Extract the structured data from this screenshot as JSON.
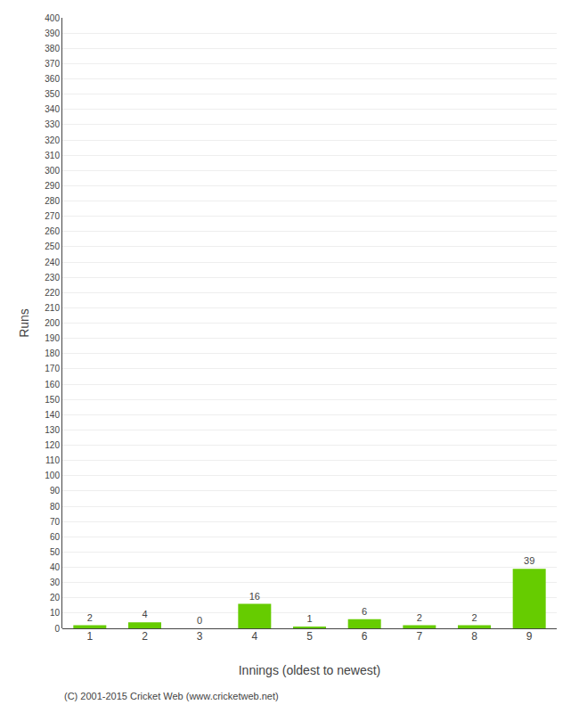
{
  "chart_data": {
    "type": "bar",
    "categories": [
      "1",
      "2",
      "3",
      "4",
      "5",
      "6",
      "7",
      "8",
      "9"
    ],
    "values": [
      2,
      4,
      0,
      16,
      1,
      6,
      2,
      2,
      39
    ],
    "color": "#66cc00",
    "xlabel": "Innings (oldest to newest)",
    "ylabel": "Runs",
    "ylim": [
      0,
      400
    ],
    "yticks": [
      0,
      10,
      20,
      30,
      40,
      50,
      60,
      70,
      80,
      90,
      100,
      110,
      120,
      130,
      140,
      150,
      160,
      170,
      180,
      190,
      200,
      210,
      220,
      230,
      240,
      250,
      260,
      270,
      280,
      290,
      300,
      310,
      320,
      330,
      340,
      350,
      360,
      370,
      380,
      390,
      400
    ],
    "grid": true,
    "data_labels": true,
    "annotations": [
      "(C) 2001-2015 Cricket Web (www.cricketweb.net)"
    ]
  }
}
